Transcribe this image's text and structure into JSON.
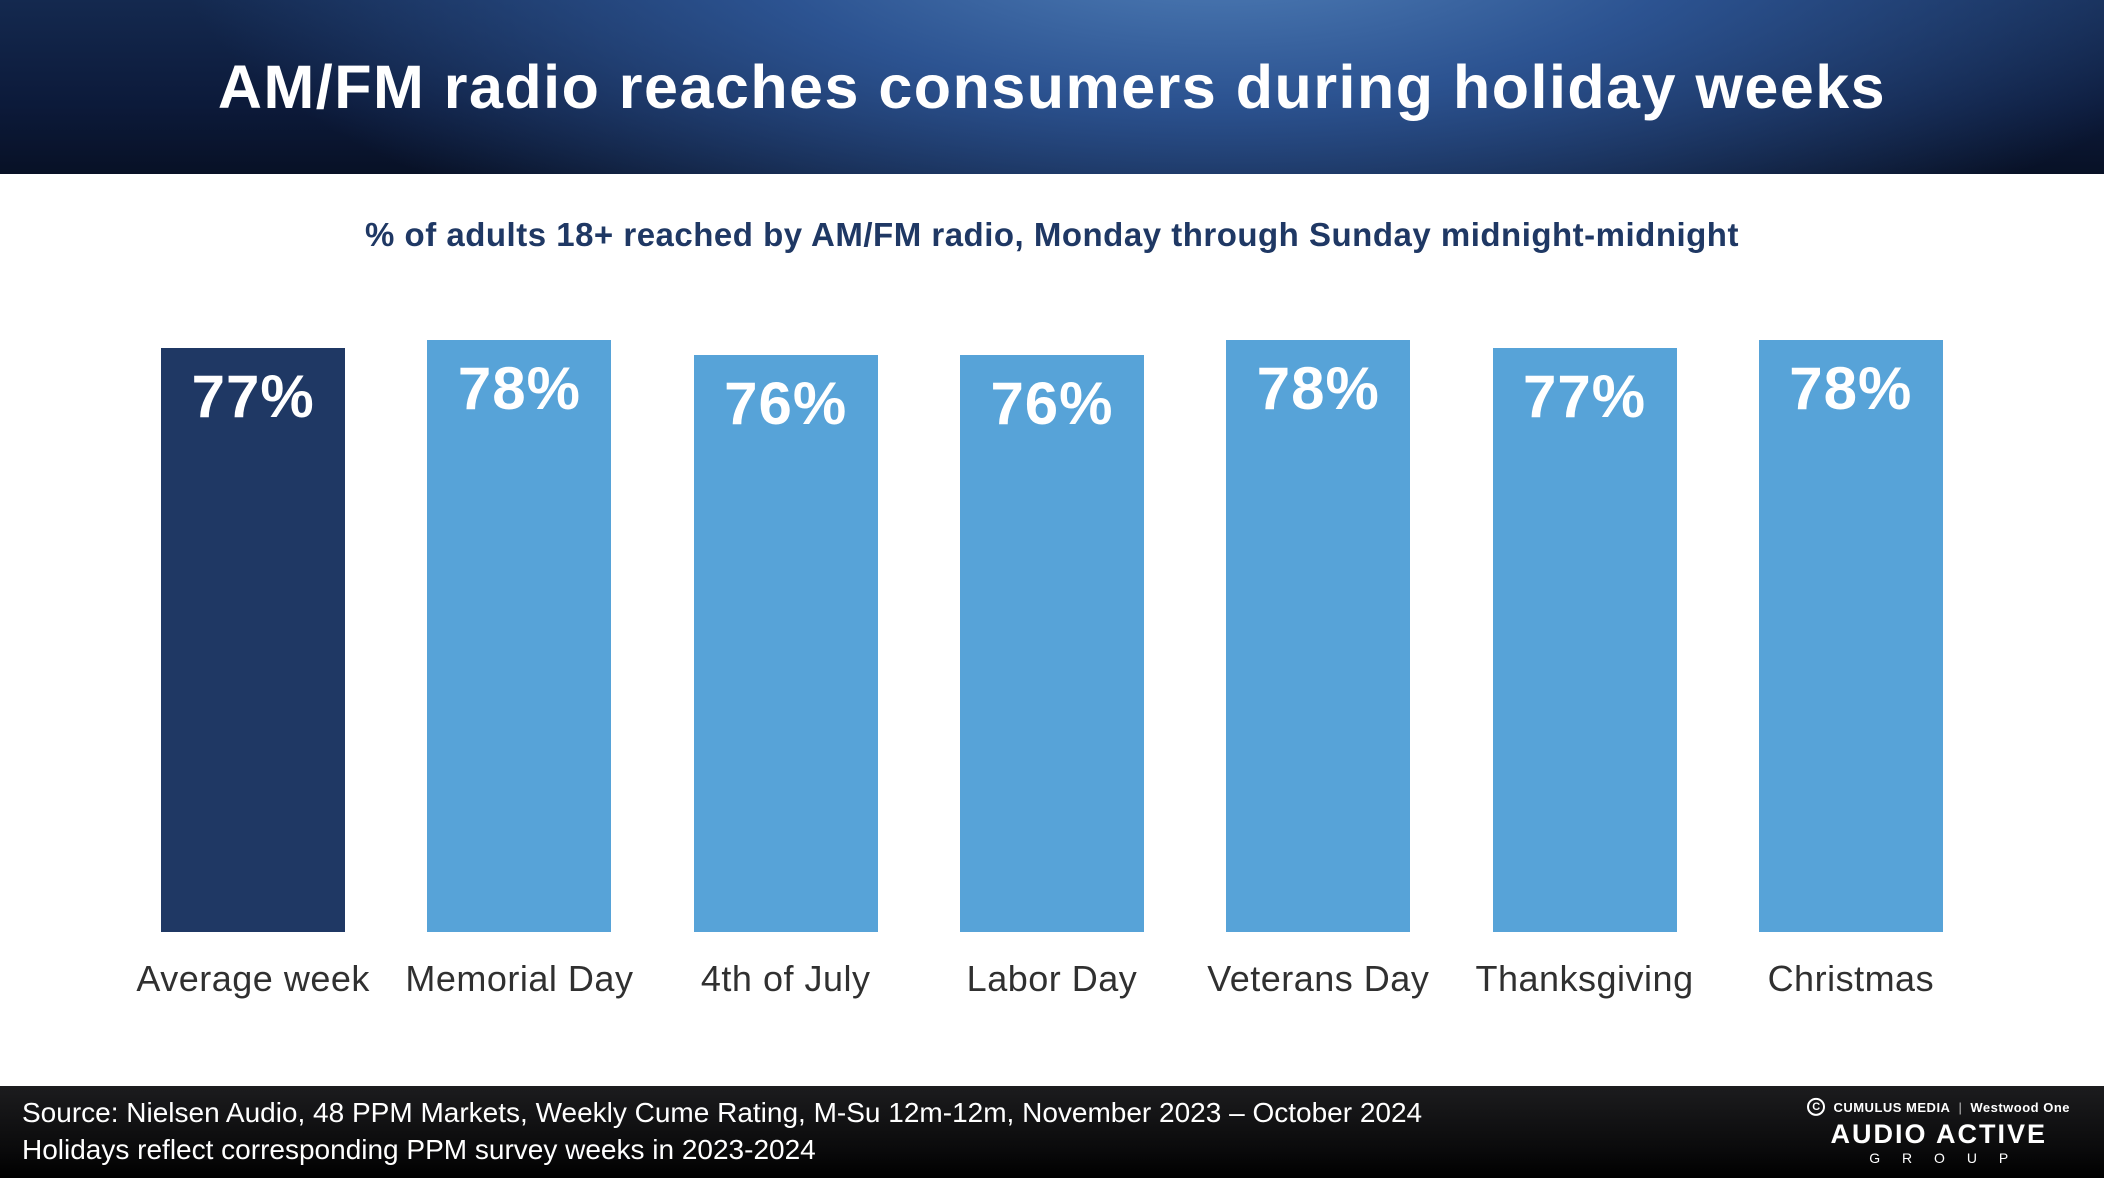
{
  "header": {
    "title": "AM/FM radio reaches consumers during holiday weeks"
  },
  "subtitle": "% of adults 18+ reached by AM/FM radio, Monday through Sunday midnight-midnight",
  "chart_data": {
    "type": "bar",
    "title": "% of adults 18+ reached by AM/FM radio, Monday through Sunday midnight-midnight",
    "categories": [
      "Average week",
      "Memorial Day",
      "4th of July",
      "Labor Day",
      "Veterans Day",
      "Thanksgiving",
      "Christmas"
    ],
    "values": [
      77,
      78,
      76,
      76,
      78,
      77,
      78
    ],
    "value_labels": [
      "77%",
      "78%",
      "76%",
      "76%",
      "78%",
      "77%",
      "78%"
    ],
    "xlabel": "",
    "ylabel": "% of adults 18+ reached",
    "ylim": [
      0,
      80
    ],
    "grid": false,
    "legend": "none",
    "highlight_index": 0
  },
  "colors": {
    "bar_highlight": "#1f3864",
    "bar_regular": "#57a3d8",
    "subtitle_text": "#1f3864",
    "header_accent": "#2c5391",
    "footer_bg": "#000000"
  },
  "footer": {
    "source_line1": "Source: Nielsen Audio, 48 PPM Markets, Weekly Cume Rating, M-Su 12m-12m, November 2023 – October 2024",
    "source_line2": "Holidays reflect corresponding PPM survey weeks in 2023-2024",
    "logo": {
      "cumulus": "CUMULUS MEDIA",
      "westwood": "Westwood One",
      "audio_active": "AUDIO ACTIVE",
      "group": "G R O U P"
    }
  }
}
